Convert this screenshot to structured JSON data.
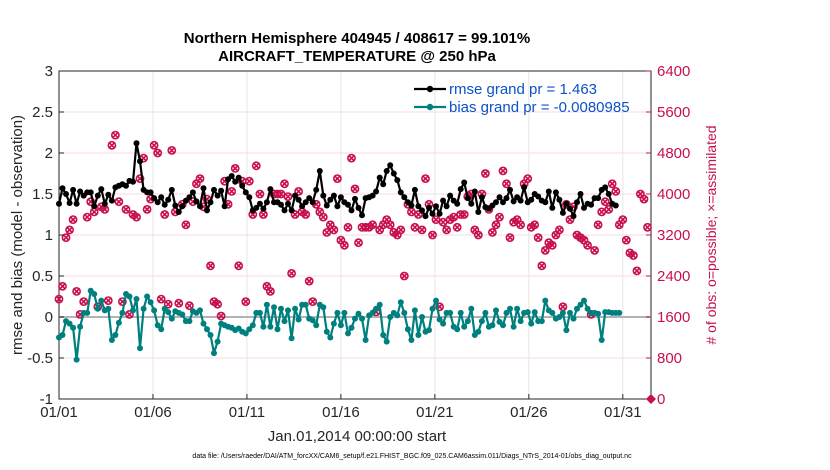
{
  "chart_data": {
    "type": "line",
    "title_line1": "Northern Hemisphere 404945 / 408617 = 99.101%",
    "title_line2": "AIRCRAFT_TEMPERATURE @ 250 hPa",
    "xlabel": "Jan.01,2014 00:00:00 start",
    "ylabel": "rmse and bias (model - observation)",
    "y2label": "# of obs: o=possible; ×=assimilated",
    "x_range": [
      1,
      32.5
    ],
    "ylim": [
      -1,
      3
    ],
    "y2lim": [
      0,
      6400
    ],
    "x_ticks": [
      {
        "x": 1,
        "label": "01/01"
      },
      {
        "x": 6,
        "label": "01/06"
      },
      {
        "x": 11,
        "label": "01/11"
      },
      {
        "x": 16,
        "label": "01/16"
      },
      {
        "x": 21,
        "label": "01/21"
      },
      {
        "x": 26,
        "label": "01/26"
      },
      {
        "x": 31,
        "label": "01/31"
      }
    ],
    "y_ticks": [
      "-1",
      "-0.5",
      "0",
      "0.5",
      "1",
      "1.5",
      "2",
      "2.5",
      "3"
    ],
    "y2_ticks": [
      "0",
      "800",
      "1600",
      "2400",
      "3200",
      "4000",
      "4800",
      "5600",
      "6400"
    ],
    "grid": true,
    "legend_position": "top-right",
    "series": [
      {
        "name": "rmse",
        "legend": "rmse grand pr = 1.463",
        "color": "#000000",
        "values": [
          1.38,
          1.57,
          1.5,
          1.39,
          1.55,
          1.38,
          1.53,
          1.48,
          1.52,
          1.52,
          1.35,
          1.48,
          1.56,
          1.38,
          1.49,
          1.42,
          1.58,
          1.6,
          1.62,
          1.6,
          1.66,
          1.65,
          2.12,
          1.9,
          1.55,
          1.52,
          1.52,
          1.45,
          1.4,
          1.46,
          1.37,
          1.43,
          1.55,
          1.36,
          1.28,
          1.35,
          1.42,
          1.46,
          1.52,
          1.41,
          1.35,
          1.57,
          1.3,
          1.4,
          1.55,
          1.48,
          1.54,
          1.35,
          1.68,
          1.72,
          1.65,
          1.7,
          1.6,
          1.52,
          1.46,
          1.3,
          1.33,
          1.38,
          1.32,
          1.4,
          1.56,
          1.4,
          1.4,
          1.37,
          1.3,
          1.38,
          1.3,
          1.48,
          1.43,
          1.35,
          1.4,
          1.45,
          1.4,
          1.55,
          1.78,
          1.48,
          1.36,
          1.43,
          1.48,
          1.35,
          1.46,
          1.4,
          1.37,
          1.3,
          1.44,
          1.33,
          1.24,
          1.45,
          1.46,
          1.48,
          1.53,
          1.7,
          1.62,
          1.78,
          1.85,
          1.75,
          1.67,
          1.52,
          1.46,
          1.4,
          1.36,
          1.55,
          1.35,
          1.3,
          1.23,
          1.33,
          1.26,
          1.35,
          1.26,
          1.42,
          1.35,
          1.48,
          1.42,
          1.38,
          1.56,
          1.64,
          1.45,
          1.38,
          1.53,
          1.28,
          1.46,
          1.34,
          1.32,
          1.36,
          1.4,
          1.46,
          1.4,
          1.45,
          1.55,
          1.41,
          1.46,
          1.42,
          1.58,
          1.4,
          1.43,
          1.5,
          1.47,
          1.42,
          1.4,
          1.53,
          1.33,
          1.52,
          1.43,
          1.27,
          1.38,
          1.32,
          1.23,
          1.4,
          1.5,
          1.33,
          1.38,
          1.37,
          1.45,
          1.45,
          1.55,
          1.58,
          1.5,
          1.38,
          1.36
        ]
      },
      {
        "name": "bias",
        "legend": "bias grand pr = -0.0080985",
        "color": "#007f7f",
        "values": [
          -0.25,
          -0.22,
          -0.05,
          -0.08,
          -0.13,
          -0.52,
          -0.12,
          0.05,
          0.05,
          0.32,
          0.28,
          0.1,
          0.2,
          0.08,
          0.1,
          -0.28,
          -0.22,
          -0.07,
          0.05,
          0.28,
          0.25,
          0.08,
          0.22,
          -0.38,
          0.1,
          0.25,
          0.18,
          0.08,
          -0.1,
          -0.15,
          0.1,
          0.06,
          -0.02,
          0.07,
          0.05,
          0.03,
          -0.05,
          -0.05,
          0.07,
          0.05,
          0.08,
          -0.08,
          -0.15,
          -0.22,
          -0.44,
          -0.3,
          -0.08,
          -0.1,
          -0.12,
          -0.13,
          -0.16,
          -0.14,
          -0.18,
          -0.2,
          -0.15,
          -0.1,
          0.05,
          0.05,
          -0.12,
          0.15,
          -0.12,
          0.12,
          -0.15,
          0.1,
          -0.05,
          0.08,
          -0.26,
          0.1,
          -0.03,
          0.15,
          0.15,
          -0.02,
          -0.04,
          -0.1,
          0.15,
          0.12,
          -0.18,
          -0.25,
          -0.08,
          0.05,
          -0.1,
          0.05,
          -0.2,
          -0.13,
          -0.02,
          0.04,
          -0.02,
          -0.28,
          0.02,
          0.05,
          0.1,
          0.15,
          -0.22,
          -0.3,
          0.0,
          0.05,
          0.02,
          0.18,
          0.05,
          -0.15,
          -0.28,
          0.08,
          -0.22,
          0.0,
          -0.18,
          -0.16,
          0.1,
          0.2,
          -0.03,
          -0.08,
          0.05,
          0.05,
          -0.12,
          -0.15,
          0.05,
          -0.12,
          -0.05,
          0.1,
          -0.22,
          -0.18,
          -0.05,
          0.05,
          -0.12,
          -0.1,
          0.08,
          -0.06,
          -0.1,
          0.05,
          0.1,
          -0.12,
          0.1,
          -0.05,
          0.05,
          0.06,
          -0.08,
          0.06,
          -0.05,
          -0.05,
          0.2,
          0.08,
          0.05,
          -0.02,
          0.0,
          0.05,
          -0.16,
          0.05,
          -0.02,
          0.1,
          0.15,
          0.2,
          0.1,
          0.05,
          0.05,
          0.04,
          -0.28,
          0.06,
          0.06,
          0.05,
          0.05,
          0.05
        ]
      }
    ],
    "obs_counts": {
      "color": "#c8104e",
      "values": [
        1950,
        2200,
        3150,
        3300,
        3500,
        2100,
        1650,
        1900,
        3550,
        3850,
        3650,
        1800,
        3750,
        3700,
        1920,
        4950,
        5150,
        3850,
        1900,
        3700,
        1650,
        3600,
        3550,
        4300,
        4700,
        3700,
        3900,
        4950,
        4800,
        1950,
        3600,
        1850,
        4850,
        3650,
        1870,
        3800,
        3400,
        1820,
        3850,
        4200,
        4300,
        3750,
        3900,
        2600,
        1900,
        1850,
        1620,
        4250,
        3800,
        4050,
        4500,
        2600,
        4250,
        1900,
        4250,
        3600,
        4550,
        4000,
        3600,
        2200,
        2100,
        4000,
        4000,
        4000,
        4200,
        3950,
        2450,
        3600,
        4050,
        3650,
        3600,
        2300,
        1900,
        3800,
        3650,
        3550,
        3250,
        3400,
        3300,
        4300,
        3100,
        3000,
        3350,
        4700,
        4100,
        3050,
        3350,
        3350,
        3350,
        3400,
        1700,
        3300,
        3400,
        3500,
        3400,
        3250,
        3200,
        3300,
        2400,
        3800,
        3650,
        3350,
        3600,
        3300,
        4300,
        3800,
        3200,
        3500,
        1800,
        3450,
        3300,
        3500,
        3550,
        3350,
        3600,
        3600,
        3950,
        4000,
        3300,
        3200,
        4000,
        4400,
        3700,
        3250,
        3400,
        3550,
        4450,
        4200,
        3150,
        3450,
        3500,
        3400,
        4200,
        4300,
        3350,
        3400,
        3150,
        2600,
        2900,
        3050,
        3000,
        3200,
        3300,
        1800,
        3800,
        3500,
        3750,
        3200,
        3150,
        3100,
        3000,
        1650,
        2900,
        3400,
        3650,
        3850,
        3700,
        4200,
        4050,
        3400,
        3500,
        3100,
        2850,
        2800,
        2500,
        4000,
        3900,
        3350
      ]
    }
  },
  "footer": "data file: /Users/raeder/DAI/ATM_forcXX/CAM6_setup/f.e21.FHIST_BGC.f09_025.CAM6assim.011/Diags_NTrS_2014-01/obs_diag_output.nc"
}
